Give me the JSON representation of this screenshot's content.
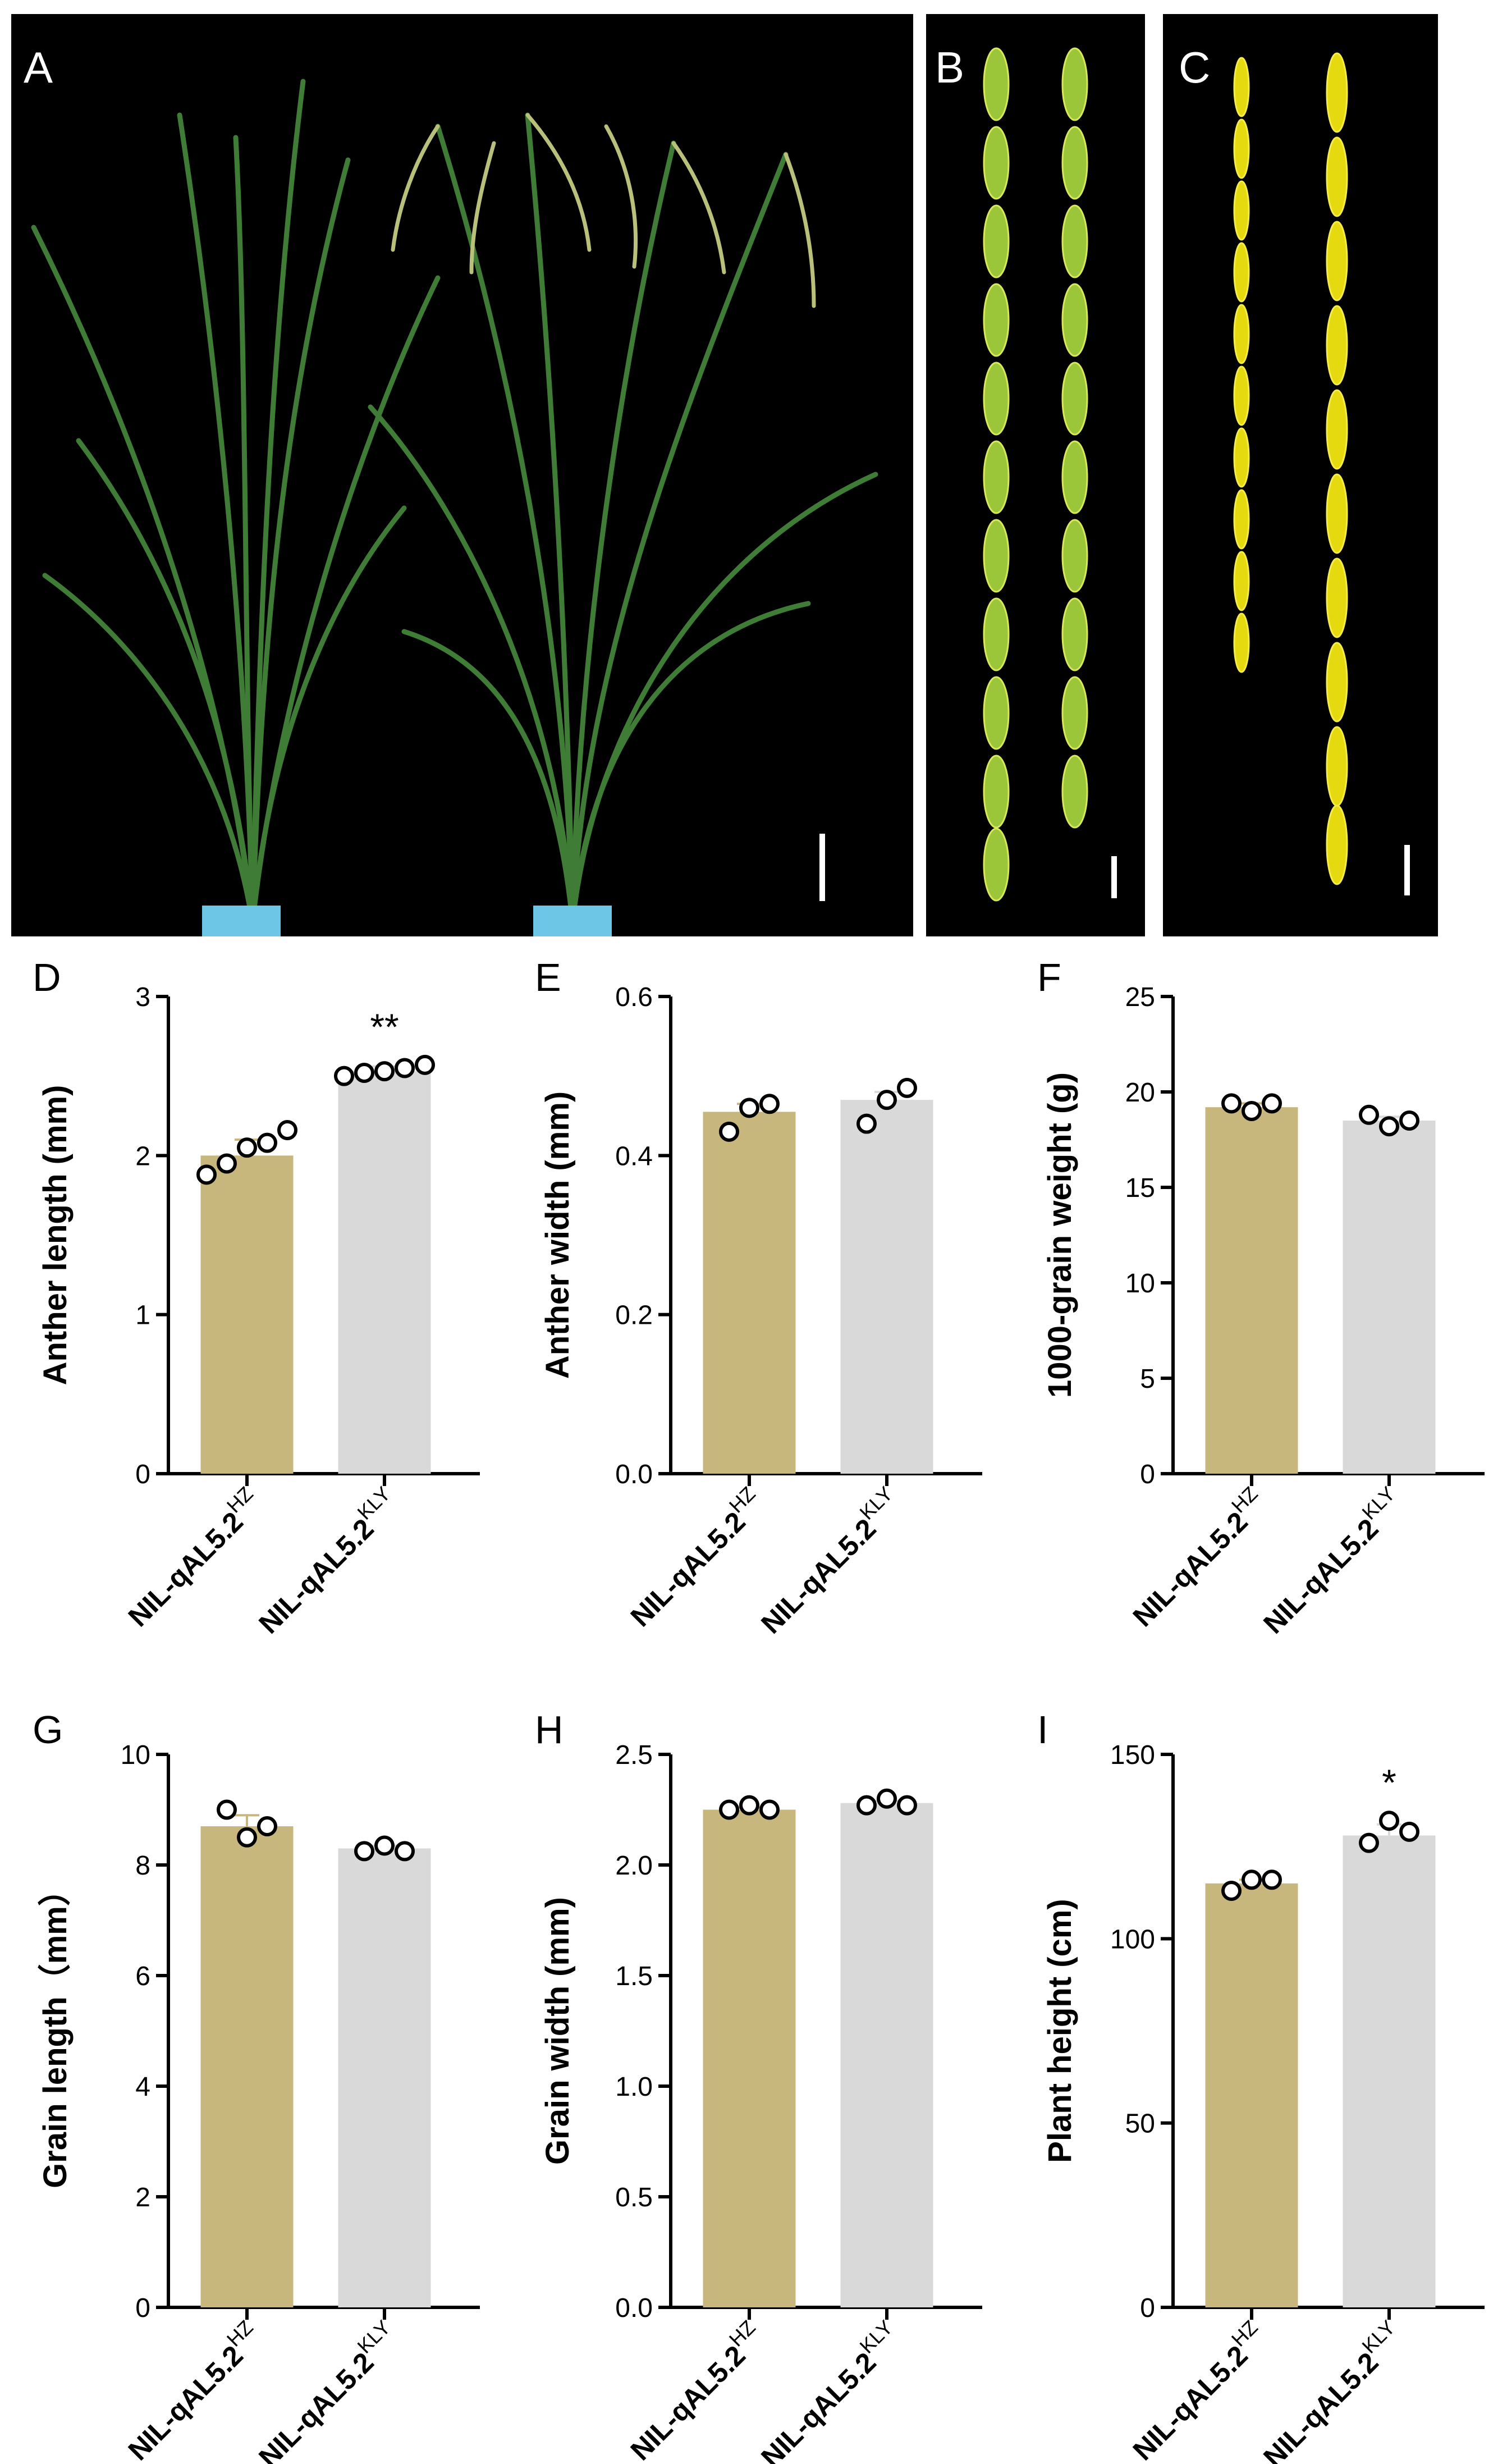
{
  "figure": {
    "panels": [
      "A",
      "B",
      "C",
      "D",
      "E",
      "F",
      "G",
      "H",
      "I"
    ]
  },
  "photos": [
    {
      "letter": "A",
      "description_icon": "rice-plants-photo"
    },
    {
      "letter": "B",
      "description_icon": "rice-grains-green-photo"
    },
    {
      "letter": "C",
      "description_icon": "rice-grains-yellow-photo"
    }
  ],
  "colors": {
    "bar_hz": "#C7B77D",
    "bar_kly": "#D9D9D9",
    "photo_bg": "#000000"
  },
  "chart_data": [
    {
      "letter": "D",
      "type": "bar",
      "categories": [
        "NIL-qAL5.2",
        "NIL-qAL5.2"
      ],
      "category_superscripts": [
        "HZ",
        "KLY"
      ],
      "values": [
        2.0,
        2.53
      ],
      "errors": [
        0.1,
        0.03
      ],
      "points": [
        [
          1.88,
          1.95,
          2.05,
          2.08,
          2.16
        ],
        [
          2.5,
          2.52,
          2.53,
          2.55,
          2.57
        ]
      ],
      "ylabel": "Anther  length (mm)",
      "ylim": [
        0,
        3
      ],
      "yticks": [
        "0",
        "1",
        "2",
        "3"
      ],
      "ytick_values": [
        0,
        1,
        2,
        3
      ],
      "significance": [
        "",
        "**"
      ]
    },
    {
      "letter": "E",
      "type": "bar",
      "categories": [
        "NIL-qAL5.2",
        "NIL-qAL5.2"
      ],
      "category_superscripts": [
        "HZ",
        "KLY"
      ],
      "values": [
        0.455,
        0.47
      ],
      "errors": [
        0.01,
        0.01
      ],
      "points": [
        [
          0.43,
          0.46,
          0.465
        ],
        [
          0.44,
          0.47,
          0.485
        ]
      ],
      "ylabel": "Anther width (mm)",
      "ylim": [
        0,
        0.6
      ],
      "yticks": [
        "0.0",
        "0.2",
        "0.4",
        "0.6"
      ],
      "ytick_values": [
        0,
        0.2,
        0.4,
        0.6
      ],
      "significance": [
        "",
        ""
      ]
    },
    {
      "letter": "F",
      "type": "bar",
      "categories": [
        "NIL-qAL5.2",
        "NIL-qAL5.2"
      ],
      "category_superscripts": [
        "HZ",
        "KLY"
      ],
      "values": [
        19.2,
        18.5
      ],
      "errors": [
        0.2,
        0.2
      ],
      "points": [
        [
          19.4,
          19.0,
          19.4
        ],
        [
          18.8,
          18.2,
          18.5
        ]
      ],
      "ylabel": "1000-grain weight (g)",
      "ylim": [
        0,
        25
      ],
      "yticks": [
        "0",
        "5",
        "10",
        "15",
        "20",
        "25"
      ],
      "ytick_values": [
        0,
        5,
        10,
        15,
        20,
        25
      ],
      "significance": [
        "",
        ""
      ]
    },
    {
      "letter": "G",
      "type": "bar",
      "categories": [
        "NIL-qAL5.2",
        "NIL-qAL5.2"
      ],
      "category_superscripts": [
        "HZ",
        "KLY"
      ],
      "values": [
        8.7,
        8.3
      ],
      "errors": [
        0.2,
        0.05
      ],
      "points": [
        [
          9.0,
          8.5,
          8.7
        ],
        [
          8.25,
          8.35,
          8.25
        ]
      ],
      "ylabel": "Grain length（mm）",
      "ylim": [
        0,
        10
      ],
      "yticks": [
        "0",
        "2",
        "4",
        "6",
        "8",
        "10"
      ],
      "ytick_values": [
        0,
        2,
        4,
        6,
        8,
        10
      ],
      "significance": [
        "",
        ""
      ]
    },
    {
      "letter": "H",
      "type": "bar",
      "categories": [
        "NIL-qAL5.2",
        "NIL-qAL5.2"
      ],
      "category_superscripts": [
        "HZ",
        "KLY"
      ],
      "values": [
        2.25,
        2.28
      ],
      "errors": [
        0.01,
        0.01
      ],
      "points": [
        [
          2.25,
          2.27,
          2.25
        ],
        [
          2.27,
          2.3,
          2.27
        ]
      ],
      "ylabel": "Grain width (mm)",
      "ylim": [
        0,
        2.5
      ],
      "yticks": [
        "0.0",
        "0.5",
        "1.0",
        "1.5",
        "2.0",
        "2.5"
      ],
      "ytick_values": [
        0,
        0.5,
        1.0,
        1.5,
        2.0,
        2.5
      ],
      "significance": [
        "",
        ""
      ]
    },
    {
      "letter": "I",
      "type": "bar",
      "categories": [
        "NIL-qAL5.2",
        "NIL-qAL5.2"
      ],
      "category_superscripts": [
        "HZ",
        "KLY"
      ],
      "values": [
        115,
        128
      ],
      "errors": [
        1,
        3
      ],
      "points": [
        [
          113,
          116,
          116
        ],
        [
          126,
          132,
          129
        ]
      ],
      "ylabel": "Plant height (cm)",
      "ylim": [
        0,
        150
      ],
      "yticks": [
        "0",
        "50",
        "100",
        "150"
      ],
      "ytick_values": [
        0,
        50,
        100,
        150
      ],
      "significance": [
        "",
        "*"
      ]
    }
  ]
}
